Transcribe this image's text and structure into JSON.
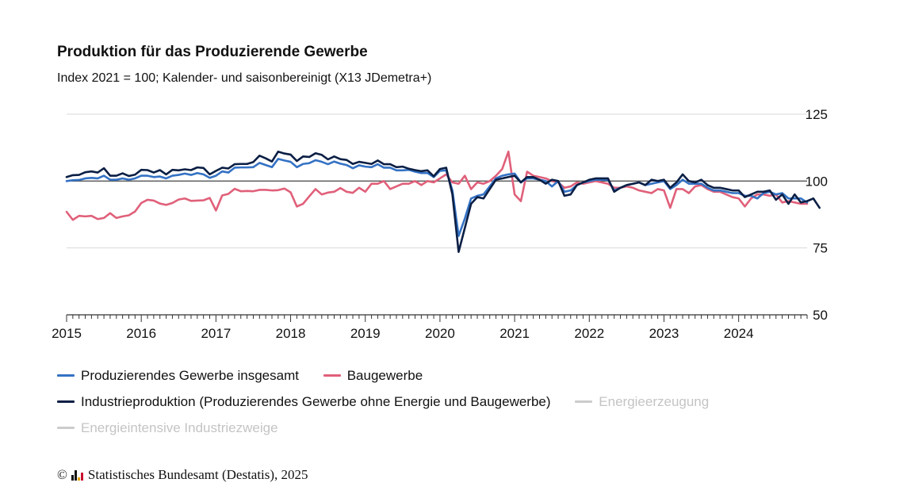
{
  "header": {
    "title": "Produktion für das Produzierende Gewerbe",
    "subtitle": "Index 2021 = 100; Kalender- und saisonbereinigt (X13 JDemetra+)"
  },
  "legend": [
    {
      "label": "Produzierendes Gewerbe insgesamt",
      "color": "#3472c4",
      "active": true
    },
    {
      "label": "Baugewerbe",
      "color": "#e0607a",
      "active": true
    },
    {
      "label": "Industrieproduktion (Produzierendes Gewerbe ohne Energie und Baugewerbe)",
      "color": "#0b1f45",
      "active": true
    },
    {
      "label": "Energieerzeugung",
      "color": "#cccccc",
      "active": false
    },
    {
      "label": "Energieintensive Industriezweige",
      "color": "#cccccc",
      "active": false
    }
  ],
  "footer": {
    "copyright_symbol": "©",
    "source": "Statistisches Bundesamt (Destatis), 2025"
  },
  "chart_data": {
    "type": "line",
    "x_start": "2015-01",
    "x_end": "2024-12",
    "frequency": "monthly",
    "x_tick_labels": [
      "2015",
      "2016",
      "2017",
      "2018",
      "2019",
      "2020",
      "2021",
      "2022",
      "2023",
      "2024"
    ],
    "y_ticks": [
      125,
      100,
      75,
      50
    ],
    "ylim": [
      50,
      125
    ],
    "y_axis_side": "right",
    "reference_line": 100,
    "grid": true,
    "legend_position": "bottom",
    "series": [
      {
        "name": "Produzierendes Gewerbe insgesamt",
        "color": "#3472c4",
        "values": [
          100,
          100.3,
          100.4,
          101,
          101.2,
          101,
          102,
          100.5,
          100.5,
          101,
          100.5,
          101,
          102,
          102,
          101.5,
          101.7,
          101,
          102,
          102.3,
          102.8,
          102.3,
          103,
          102.5,
          101.2,
          102,
          103.6,
          103.2,
          105,
          105.1,
          105.1,
          105.2,
          106.8,
          106,
          105.2,
          108.3,
          107.7,
          107.2,
          105.2,
          106.4,
          106.7,
          107.8,
          107.2,
          106.3,
          107.3,
          106.5,
          106,
          104.8,
          105.9,
          105.4,
          105.2,
          106.3,
          105,
          105,
          104,
          104,
          104.2,
          103.5,
          103,
          103,
          101.5,
          103.8,
          104,
          96.5,
          79.5,
          86,
          93.5,
          94.5,
          95,
          98,
          101,
          102,
          102.5,
          102.8,
          99.5,
          101,
          101,
          100.5,
          100,
          98,
          100,
          96,
          96.5,
          98.5,
          99.5,
          100,
          100.5,
          100.5,
          100.5,
          96.5,
          97.5,
          98.5,
          99,
          99.5,
          98.5,
          99,
          99.5,
          100,
          97,
          98.5,
          100.5,
          99,
          99,
          99,
          97.5,
          96.5,
          96.5,
          96,
          95.5,
          95.5,
          94.5,
          94.5,
          93.5,
          95.5,
          96,
          95,
          95.5,
          93.5,
          93.5,
          93.5,
          92
        ]
      },
      {
        "name": "Baugewerbe",
        "color": "#e0607a",
        "values": [
          88.5,
          85.5,
          87,
          86.8,
          87,
          85.8,
          86.2,
          88,
          86.2,
          86.8,
          87.2,
          88.6,
          91.8,
          93,
          92.7,
          91.6,
          91.1,
          91.8,
          93.1,
          93.5,
          92.6,
          92.7,
          92.8,
          93.7,
          89,
          94.6,
          95.2,
          97.1,
          96.2,
          96.3,
          96.2,
          96.7,
          96.7,
          96.5,
          96.6,
          97.2,
          95.8,
          90.5,
          91.5,
          94.3,
          97,
          95,
          95.7,
          96,
          97.4,
          96,
          95.6,
          97.5,
          96,
          99,
          99,
          100,
          97,
          98,
          99,
          99,
          100,
          98.5,
          100,
          99.5,
          101,
          102.5,
          99.5,
          99,
          102,
          97,
          99.5,
          99,
          100,
          102,
          104.5,
          111,
          95,
          92.5,
          103.5,
          102,
          101.5,
          101,
          100,
          99.5,
          97.5,
          98,
          99.5,
          99,
          99.5,
          100,
          99.5,
          99,
          97.5,
          97.5,
          98,
          97.5,
          96.5,
          96,
          95.5,
          97,
          96.5,
          90,
          97,
          97,
          95.5,
          98,
          98.5,
          97,
          96,
          96,
          95,
          94,
          93.5,
          90.5,
          93.5,
          95,
          95,
          94.5,
          95,
          92,
          92.5,
          92,
          91.5,
          91.5
        ]
      },
      {
        "name": "Industrieproduktion (Produzierendes Gewerbe ohne Energie und Baugewerbe)",
        "color": "#0b1f45",
        "values": [
          101.5,
          102.2,
          102.3,
          103.3,
          103.6,
          103.2,
          104.8,
          102,
          102,
          102.9,
          101.9,
          102.4,
          104.2,
          104.1,
          103.2,
          104.1,
          102.5,
          104.2,
          104,
          104.4,
          104.1,
          105.1,
          104.9,
          102.5,
          103.8,
          105,
          104.7,
          106.3,
          106.4,
          106.4,
          107.1,
          109.5,
          108.5,
          107.3,
          111,
          110.3,
          109.9,
          107.5,
          109.2,
          109,
          110.4,
          109.8,
          108.1,
          109.2,
          108.2,
          107.9,
          106.4,
          107.2,
          106.8,
          106.4,
          107.7,
          106.3,
          106.3,
          105.2,
          105.4,
          104.6,
          104.1,
          103.7,
          104,
          101.8,
          104.5,
          105,
          95,
          73.5,
          82.5,
          91.5,
          94,
          93.5,
          97,
          100.5,
          101,
          101.5,
          102,
          99.5,
          101.5,
          101.5,
          100.5,
          99,
          100.5,
          100,
          94.5,
          95,
          98.5,
          99.5,
          100.5,
          101,
          101,
          101,
          96,
          97.5,
          98.5,
          99,
          99.5,
          98.5,
          100.5,
          100,
          100.5,
          97.5,
          99.5,
          102.5,
          100,
          99.5,
          100.5,
          98.5,
          97.5,
          97.5,
          97,
          96.5,
          96.5,
          94,
          95,
          96,
          96,
          96.5,
          93,
          95,
          91.5,
          95,
          92,
          92.5,
          93.5,
          90
        ]
      }
    ]
  }
}
